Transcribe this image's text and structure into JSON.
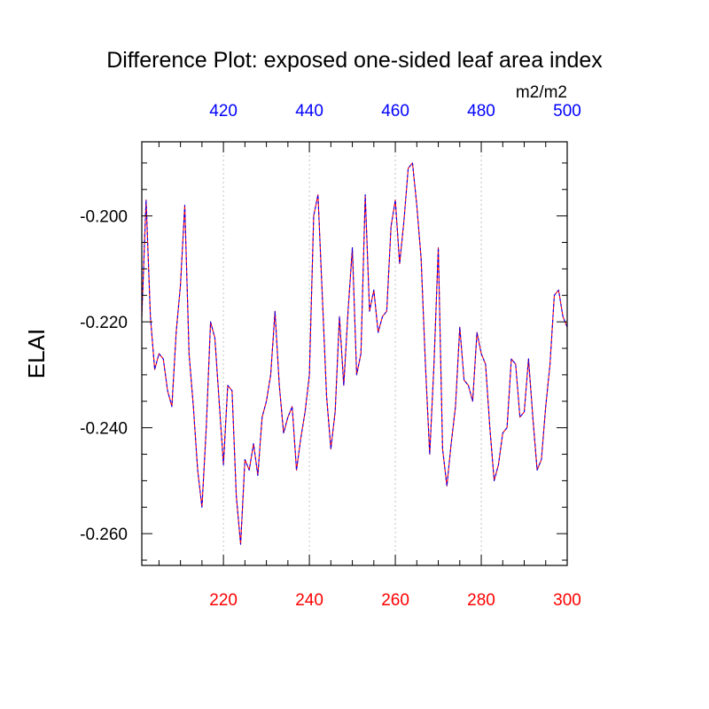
{
  "chart_data": {
    "type": "line",
    "title": "Difference Plot: exposed one-sided leaf area index",
    "ylabel": "ELAI",
    "units": "m2/m2",
    "ylim": [
      -0.266,
      -0.186
    ],
    "y_ticks": [
      -0.2,
      -0.22,
      -0.24,
      -0.26
    ],
    "y_tick_labels": [
      "-0.200",
      "-0.220",
      "-0.240",
      "-0.260"
    ],
    "bottom_axis": {
      "range": [
        201,
        300
      ],
      "ticks": [
        220,
        240,
        260,
        280,
        300
      ],
      "tick_labels": [
        "220",
        "240",
        "260",
        "280",
        "300"
      ],
      "color": "#ff0000"
    },
    "top_axis": {
      "range": [
        401,
        500
      ],
      "ticks": [
        420,
        440,
        460,
        480,
        500
      ],
      "tick_labels": [
        "420",
        "440",
        "460",
        "480",
        "500"
      ],
      "color": "#0000ff"
    },
    "grid": "vertical dashed at major x ticks",
    "series": [
      {
        "name": "difference",
        "line_style": "dashed",
        "colors": [
          "#ff0000",
          "#0000ff"
        ],
        "x": [
          201,
          202,
          203,
          204,
          205,
          206,
          207,
          208,
          209,
          210,
          211,
          212,
          213,
          214,
          215,
          216,
          217,
          218,
          219,
          220,
          221,
          222,
          223,
          224,
          225,
          226,
          227,
          228,
          229,
          230,
          231,
          232,
          233,
          234,
          235,
          236,
          237,
          238,
          239,
          240,
          241,
          242,
          243,
          244,
          245,
          246,
          247,
          248,
          249,
          250,
          251,
          252,
          253,
          254,
          255,
          256,
          257,
          258,
          259,
          260,
          261,
          262,
          263,
          264,
          265,
          266,
          267,
          268,
          269,
          270,
          271,
          272,
          273,
          274,
          275,
          276,
          277,
          278,
          279,
          280,
          281,
          282,
          283,
          284,
          285,
          286,
          287,
          288,
          289,
          290,
          291,
          292,
          293,
          294,
          295,
          296,
          297,
          298,
          299,
          300
        ],
        "y": [
          -0.219,
          -0.197,
          -0.219,
          -0.229,
          -0.226,
          -0.227,
          -0.233,
          -0.236,
          -0.222,
          -0.213,
          -0.198,
          -0.226,
          -0.236,
          -0.248,
          -0.255,
          -0.24,
          -0.22,
          -0.223,
          -0.235,
          -0.247,
          -0.232,
          -0.233,
          -0.253,
          -0.262,
          -0.246,
          -0.248,
          -0.243,
          -0.249,
          -0.238,
          -0.235,
          -0.23,
          -0.218,
          -0.232,
          -0.241,
          -0.238,
          -0.236,
          -0.248,
          -0.242,
          -0.237,
          -0.23,
          -0.2,
          -0.196,
          -0.215,
          -0.234,
          -0.244,
          -0.237,
          -0.219,
          -0.232,
          -0.218,
          -0.206,
          -0.23,
          -0.226,
          -0.196,
          -0.218,
          -0.214,
          -0.222,
          -0.219,
          -0.218,
          -0.202,
          -0.197,
          -0.209,
          -0.201,
          -0.191,
          -0.19,
          -0.198,
          -0.208,
          -0.228,
          -0.245,
          -0.228,
          -0.206,
          -0.244,
          -0.251,
          -0.243,
          -0.236,
          -0.221,
          -0.231,
          -0.232,
          -0.235,
          -0.222,
          -0.226,
          -0.228,
          -0.24,
          -0.25,
          -0.247,
          -0.241,
          -0.24,
          -0.227,
          -0.228,
          -0.238,
          -0.237,
          -0.227,
          -0.238,
          -0.248,
          -0.246,
          -0.236,
          -0.228,
          -0.215,
          -0.214,
          -0.219,
          -0.221
        ]
      }
    ]
  }
}
